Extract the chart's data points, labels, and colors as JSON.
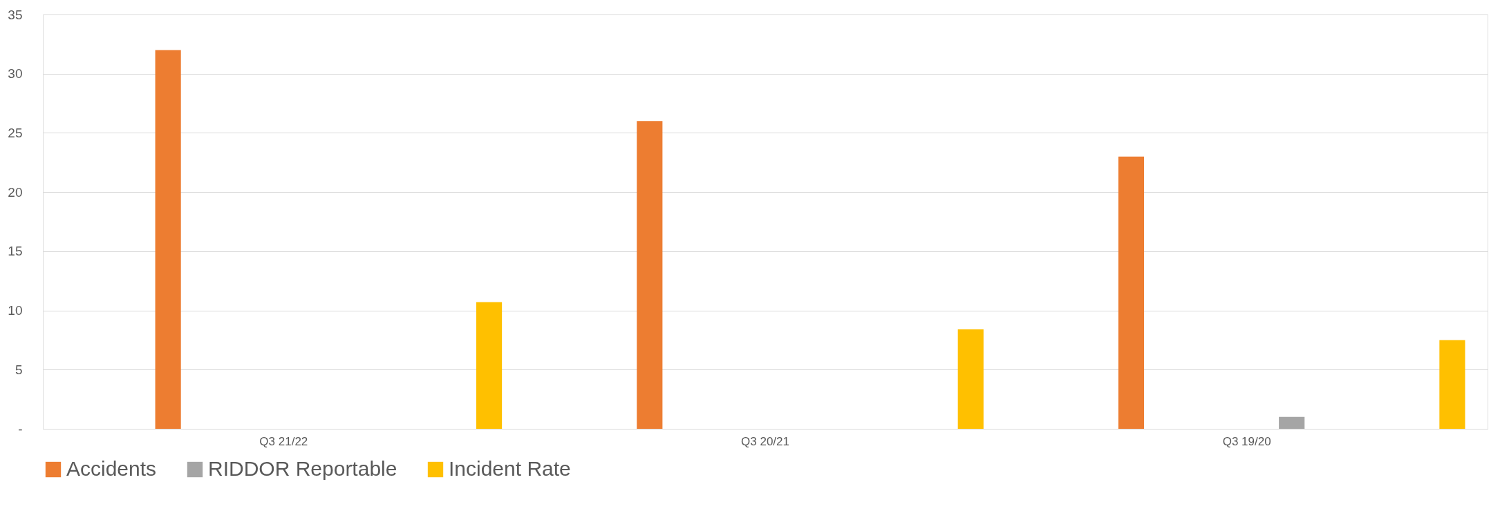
{
  "chart_data": {
    "type": "bar",
    "categories": [
      "Q3 21/22",
      "Q3 20/21",
      "Q3 19/20"
    ],
    "series": [
      {
        "name": "Accidents",
        "color": "#ed7d31",
        "values": [
          32,
          26,
          23
        ]
      },
      {
        "name": "RIDDOR Reportable",
        "color": "#a5a5a5",
        "values": [
          0,
          0,
          1
        ]
      },
      {
        "name": "Incident Rate",
        "color": "#ffc000",
        "values": [
          10.7,
          8.4,
          7.5
        ]
      }
    ],
    "ylim": [
      0,
      35
    ],
    "yticks": [
      {
        "value": 0,
        "label": "-"
      },
      5,
      10,
      15,
      20,
      25,
      30,
      35
    ],
    "grid": "y",
    "legend": "bottom"
  }
}
